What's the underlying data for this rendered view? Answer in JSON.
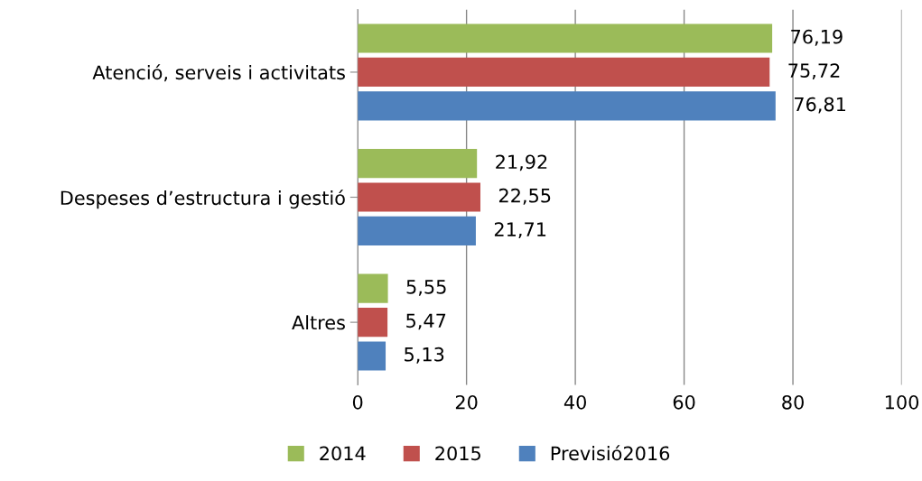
{
  "chart_data": {
    "type": "bar",
    "orientation": "horizontal",
    "categories": [
      "Atenció, serveis i activitats",
      "Despeses d’estructura i gestió",
      "Altres"
    ],
    "series": [
      {
        "name": "2014",
        "color": "#9bbb59",
        "values": [
          76.19,
          21.92,
          5.55
        ],
        "value_labels": [
          "76,19",
          "21,92",
          "5,55"
        ]
      },
      {
        "name": "2015",
        "color": "#c0504d",
        "values": [
          75.72,
          22.55,
          5.47
        ],
        "value_labels": [
          "75,72",
          "22,55",
          "5,47"
        ]
      },
      {
        "name": "Previsió2016",
        "color": "#4f81bd",
        "values": [
          76.81,
          21.71,
          5.13
        ],
        "value_labels": [
          "76,81",
          "21,71",
          "5,13"
        ]
      }
    ],
    "xlim": [
      0,
      100
    ],
    "xticks": [
      0,
      20,
      40,
      60,
      80,
      100
    ],
    "grid": "x",
    "legend": "bottom"
  }
}
